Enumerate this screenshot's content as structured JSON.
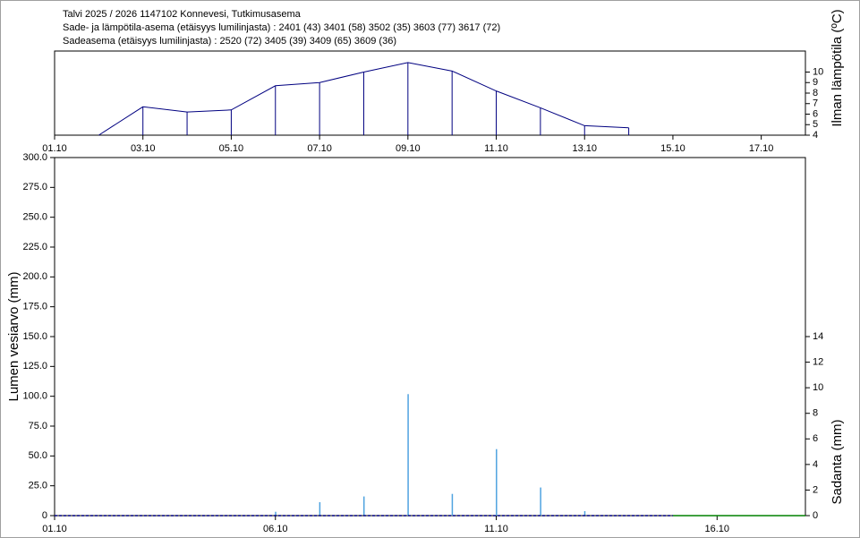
{
  "header": {
    "lines": [
      "Talvi 2025 / 2026 1147102 Konnevesi, Tutkimusasema",
      "Sade- ja lämpötila-asema (etäisyys lumilinjasta) :  2401 (43) 3401 (58) 3502 (35) 3603 (77) 3617 (72)",
      "Sadeasema (etäisyys lumilinjasta) :  2520 (72) 3405 (39) 3409 (65) 3609 (36)"
    ]
  },
  "chart_data": [
    {
      "type": "line",
      "y_label": "Ilman lämpötila (ºC)",
      "x": [
        2,
        3,
        4,
        5,
        6,
        7,
        8,
        9,
        10,
        11,
        12,
        13,
        14
      ],
      "series": [
        {
          "color": "#000080",
          "values": [
            4.0,
            6.7,
            6.2,
            6.4,
            8.7,
            9.0,
            10.0,
            10.9,
            10.1,
            8.2,
            6.6,
            4.9,
            4.7
          ]
        }
      ],
      "drop_lines": true,
      "xlim": [
        1,
        18
      ],
      "xticks": [
        {
          "value": 1,
          "label": "01.10"
        },
        {
          "value": 3,
          "label": "03.10"
        },
        {
          "value": 5,
          "label": "05.10"
        },
        {
          "value": 7,
          "label": "07.10"
        },
        {
          "value": 9,
          "label": "09.10"
        },
        {
          "value": 11,
          "label": "11.10"
        },
        {
          "value": 13,
          "label": "13.10"
        },
        {
          "value": 15,
          "label": "15.10"
        },
        {
          "value": 17,
          "label": "17.10"
        }
      ],
      "ylim": [
        4,
        12
      ],
      "yticks": [
        4,
        5,
        6,
        7,
        8,
        9,
        10
      ]
    },
    {
      "type": "combo",
      "y_label": "Lumen vesiarvo (mm)",
      "y2_label": "Sadanta (mm)",
      "series": [
        {
          "type": "bar",
          "axis": "y2",
          "color": "#4fa3e0",
          "x": [
            6,
            7,
            8,
            9,
            10,
            11,
            12,
            13
          ],
          "values": [
            0.3,
            1.05,
            1.5,
            9.5,
            1.7,
            5.2,
            2.2,
            0.35
          ]
        },
        {
          "type": "line",
          "color": "#000080",
          "dashed": true,
          "x": [
            1,
            2,
            3,
            4,
            5,
            6,
            7,
            8,
            9,
            10,
            11,
            12,
            13,
            14,
            15
          ],
          "values": [
            0,
            0,
            0,
            0,
            0,
            0,
            0,
            0,
            0,
            0,
            0,
            0,
            0,
            0,
            0
          ]
        },
        {
          "type": "line",
          "color": "#008000",
          "dashed": false,
          "x": [
            15,
            18
          ],
          "values": [
            0,
            0
          ]
        }
      ],
      "xlim": [
        1,
        18
      ],
      "xticks": [
        {
          "value": 1,
          "label": "01.10"
        },
        {
          "value": 6,
          "label": "06.10"
        },
        {
          "value": 11,
          "label": "11.10"
        },
        {
          "value": 16,
          "label": "16.10"
        }
      ],
      "ylim": [
        0,
        300
      ],
      "yticks": [
        0,
        {
          "value": 25,
          "label": "25.0"
        },
        {
          "value": 50,
          "label": "50.0"
        },
        {
          "value": 75,
          "label": "75.0"
        },
        {
          "value": 100,
          "label": "100.0"
        },
        {
          "value": 125,
          "label": "125.0"
        },
        {
          "value": 150,
          "label": "150.0"
        },
        {
          "value": 175,
          "label": "175.0"
        },
        {
          "value": 200,
          "label": "200.0"
        },
        {
          "value": 225,
          "label": "225.0"
        },
        {
          "value": 250,
          "label": "250.0"
        },
        {
          "value": 275,
          "label": "275.0"
        },
        {
          "value": 300,
          "label": "300.0"
        }
      ],
      "y2lim": [
        0,
        28
      ],
      "y2ticks": [
        0,
        2,
        4,
        6,
        8,
        10,
        12,
        14
      ]
    }
  ]
}
